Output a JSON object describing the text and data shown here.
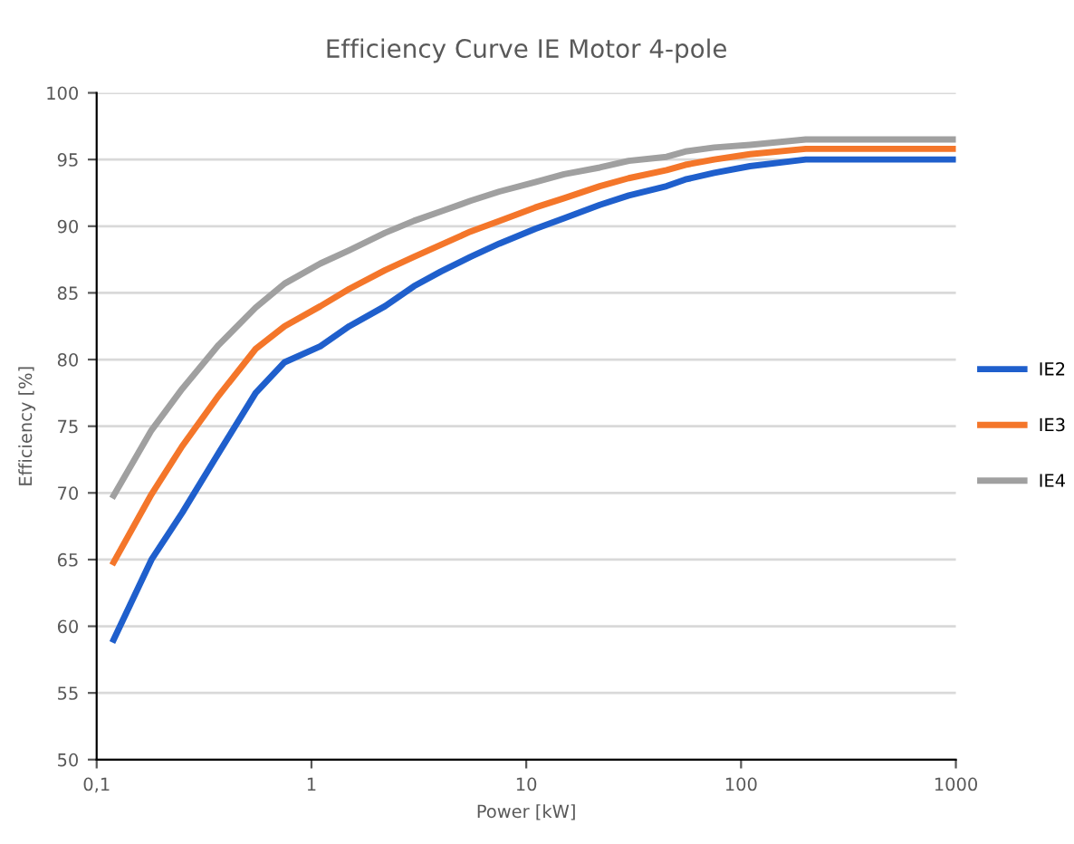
{
  "chart_data": {
    "type": "line",
    "title": "Efficiency Curve IE Motor 4-pole",
    "xlabel": "Power [kW]",
    "ylabel": "Efficiency [%]",
    "x": [
      0.12,
      0.18,
      0.25,
      0.37,
      0.55,
      0.75,
      1.1,
      1.5,
      2.2,
      3,
      4,
      5.5,
      7.5,
      11,
      15,
      22,
      30,
      45,
      55,
      75,
      110,
      200,
      1000
    ],
    "series": [
      {
        "name": "IE2",
        "color": "#1f5fcc",
        "values": [
          59,
          65,
          68.5,
          73,
          77.5,
          79.8,
          81,
          82.5,
          84,
          85.5,
          86.6,
          87.7,
          88.7,
          89.8,
          90.6,
          91.6,
          92.3,
          93,
          93.5,
          94,
          94.5,
          95,
          95
        ]
      },
      {
        "name": "IE3",
        "color": "#f4762a",
        "values": [
          64.8,
          69.9,
          73.5,
          77.3,
          80.8,
          82.5,
          84,
          85.3,
          86.7,
          87.7,
          88.6,
          89.6,
          90.4,
          91.4,
          92.1,
          93,
          93.6,
          94.2,
          94.6,
          95,
          95.4,
          95.8,
          95.8
        ]
      },
      {
        "name": "IE4",
        "color": "#a0a0a0",
        "values": [
          69.8,
          74.7,
          77.8,
          81.1,
          83.9,
          85.7,
          87.2,
          88.2,
          89.5,
          90.4,
          91.1,
          91.9,
          92.6,
          93.3,
          93.9,
          94.4,
          94.9,
          95.2,
          95.6,
          95.9,
          96.1,
          96.5,
          96.5
        ]
      }
    ],
    "log": "x",
    "xlim": [
      0.1,
      1000
    ],
    "xticks": [
      {
        "value": 0.1,
        "label": "0,1"
      },
      1,
      10,
      100,
      1000
    ],
    "ylim": [
      50,
      100
    ],
    "yticks": [
      50,
      55,
      60,
      65,
      70,
      75,
      80,
      85,
      90,
      95,
      100
    ],
    "grid": "y",
    "legend": "right",
    "marker": "none",
    "line_style": "solid"
  }
}
